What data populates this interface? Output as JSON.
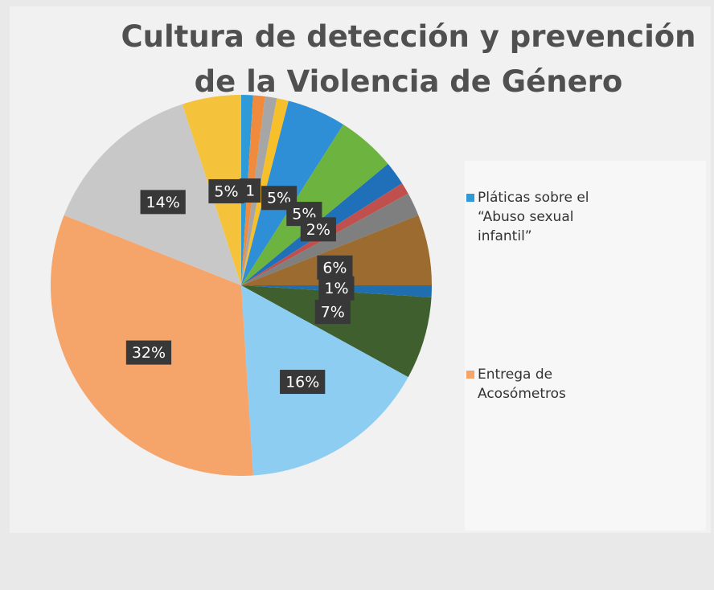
{
  "chart_data": {
    "type": "pie",
    "title": "Cultura de detección y prevención de la Violencia de Género",
    "categories": [
      "Pláticas sobre el “Abuso sexual infantil”",
      null,
      null,
      null,
      null,
      null,
      null,
      null,
      null,
      null,
      null,
      null,
      null,
      "Entrega de Acosómetros",
      null,
      null
    ],
    "values": [
      1,
      1,
      1,
      1,
      5,
      5,
      2,
      1,
      2,
      6,
      1,
      7,
      16,
      32,
      14,
      5
    ],
    "value_labels": [
      null,
      "1",
      null,
      null,
      "5%",
      "5%",
      "2%",
      null,
      null,
      "6%",
      "1%",
      "7%",
      "16%",
      "32%",
      "14%",
      "5%"
    ],
    "colors": [
      "#2e9bd8",
      "#f08a3c",
      "#a6a6a6",
      "#f7c02b",
      "#2e8fd6",
      "#6cb33f",
      "#1f70b8",
      "#c0504d",
      "#7f7f7f",
      "#9c6b30",
      "#1f6fb0",
      "#3f5f2f",
      "#8ecdf2",
      "#f5a46a",
      "#c8c8c8",
      "#f5c33b"
    ]
  }
}
